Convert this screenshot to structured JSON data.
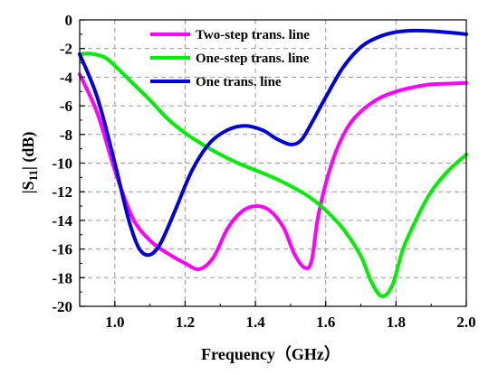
{
  "chart_data": {
    "type": "line",
    "xlabel": "Frequency（GHz）",
    "ylabel_main": "|S",
    "ylabel_sub": "11",
    "ylabel_tail": "| (dB)",
    "xlim": [
      0.9,
      2.0
    ],
    "ylim": [
      -20,
      0
    ],
    "xticks": [
      1.0,
      1.2,
      1.4,
      1.6,
      1.8,
      2.0
    ],
    "xtick_labels": [
      "1.0",
      "1.2",
      "1.4",
      "1.6",
      "1.8",
      "2.0"
    ],
    "yticks": [
      0,
      -2,
      -4,
      -6,
      -8,
      -10,
      -12,
      -14,
      -16,
      -18,
      -20
    ],
    "ytick_labels": [
      "0",
      "-2",
      "-4",
      "-6",
      "-8",
      "-10",
      "-12",
      "-14",
      "-16",
      "-18",
      "-20"
    ],
    "grid": true,
    "legend_position": "top-center",
    "series": [
      {
        "name": "Two-step trans. line",
        "color": "#ff00ff",
        "points": [
          [
            0.9,
            -3.8
          ],
          [
            0.95,
            -6.5
          ],
          [
            1.0,
            -10.5
          ],
          [
            1.05,
            -13.8
          ],
          [
            1.1,
            -15.4
          ],
          [
            1.15,
            -16.3
          ],
          [
            1.2,
            -17.0
          ],
          [
            1.24,
            -17.4
          ],
          [
            1.28,
            -16.6
          ],
          [
            1.32,
            -14.6
          ],
          [
            1.36,
            -13.4
          ],
          [
            1.4,
            -13.0
          ],
          [
            1.44,
            -13.3
          ],
          [
            1.48,
            -14.5
          ],
          [
            1.51,
            -16.3
          ],
          [
            1.54,
            -17.3
          ],
          [
            1.56,
            -16.8
          ],
          [
            1.58,
            -13.5
          ],
          [
            1.62,
            -9.8
          ],
          [
            1.66,
            -7.6
          ],
          [
            1.7,
            -6.4
          ],
          [
            1.75,
            -5.5
          ],
          [
            1.8,
            -5.0
          ],
          [
            1.85,
            -4.7
          ],
          [
            1.9,
            -4.5
          ],
          [
            1.95,
            -4.45
          ],
          [
            2.0,
            -4.4
          ]
        ]
      },
      {
        "name": "One-step trans. line",
        "color": "#00ee00",
        "points": [
          [
            0.9,
            -2.4
          ],
          [
            0.93,
            -2.35
          ],
          [
            0.97,
            -2.6
          ],
          [
            1.0,
            -3.2
          ],
          [
            1.05,
            -4.4
          ],
          [
            1.1,
            -5.6
          ],
          [
            1.15,
            -6.9
          ],
          [
            1.2,
            -7.9
          ],
          [
            1.25,
            -8.7
          ],
          [
            1.3,
            -9.4
          ],
          [
            1.35,
            -10.0
          ],
          [
            1.4,
            -10.5
          ],
          [
            1.45,
            -11.0
          ],
          [
            1.5,
            -11.6
          ],
          [
            1.55,
            -12.3
          ],
          [
            1.6,
            -13.3
          ],
          [
            1.65,
            -14.6
          ],
          [
            1.7,
            -16.5
          ],
          [
            1.73,
            -18.3
          ],
          [
            1.76,
            -19.3
          ],
          [
            1.79,
            -18.5
          ],
          [
            1.82,
            -16.0
          ],
          [
            1.86,
            -13.8
          ],
          [
            1.9,
            -12.0
          ],
          [
            1.95,
            -10.5
          ],
          [
            2.0,
            -9.4
          ]
        ]
      },
      {
        "name": "One trans. line",
        "color": "#0000dd",
        "points": [
          [
            0.9,
            -2.4
          ],
          [
            0.95,
            -5.4
          ],
          [
            1.0,
            -10.0
          ],
          [
            1.04,
            -14.0
          ],
          [
            1.07,
            -16.0
          ],
          [
            1.1,
            -16.4
          ],
          [
            1.13,
            -15.6
          ],
          [
            1.17,
            -13.4
          ],
          [
            1.22,
            -10.5
          ],
          [
            1.27,
            -8.6
          ],
          [
            1.32,
            -7.7
          ],
          [
            1.37,
            -7.4
          ],
          [
            1.42,
            -7.7
          ],
          [
            1.46,
            -8.3
          ],
          [
            1.5,
            -8.7
          ],
          [
            1.53,
            -8.4
          ],
          [
            1.56,
            -7.2
          ],
          [
            1.6,
            -5.4
          ],
          [
            1.65,
            -3.3
          ],
          [
            1.7,
            -1.9
          ],
          [
            1.75,
            -1.2
          ],
          [
            1.8,
            -0.85
          ],
          [
            1.85,
            -0.75
          ],
          [
            1.9,
            -0.78
          ],
          [
            1.95,
            -0.88
          ],
          [
            2.0,
            -1.0
          ]
        ]
      }
    ]
  }
}
